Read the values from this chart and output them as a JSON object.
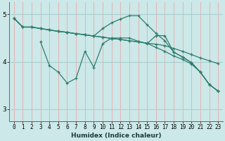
{
  "xlabel": "Humidex (Indice chaleur)",
  "xlim": [
    -0.5,
    23.5
  ],
  "ylim": [
    2.75,
    5.25
  ],
  "yticks": [
    3,
    4,
    5
  ],
  "xticks": [
    0,
    1,
    2,
    3,
    4,
    5,
    6,
    7,
    8,
    9,
    10,
    11,
    12,
    13,
    14,
    15,
    16,
    17,
    18,
    19,
    20,
    21,
    22,
    23
  ],
  "bg_color": "#cce8e8",
  "vgrid_color": "#e8aaaa",
  "hgrid_color": "#aacece",
  "line_color": "#2e7d6e",
  "lines": [
    {
      "x": [
        0,
        1,
        2,
        3,
        4,
        5,
        6,
        7,
        8,
        9,
        10,
        11,
        12,
        13,
        14,
        15,
        16,
        17,
        18,
        19,
        20,
        21,
        22,
        23
      ],
      "y": [
        4.92,
        4.73,
        4.73,
        4.7,
        4.67,
        4.64,
        4.62,
        4.59,
        4.57,
        4.54,
        4.52,
        4.49,
        4.47,
        4.44,
        4.42,
        4.39,
        4.37,
        4.34,
        4.28,
        4.22,
        4.15,
        4.08,
        4.02,
        3.96
      ]
    },
    {
      "x": [
        0,
        1,
        2,
        3,
        4,
        5,
        6,
        7,
        8,
        9,
        10,
        11,
        12,
        13,
        14,
        15,
        16,
        17,
        18,
        19,
        20,
        21,
        22,
        23
      ],
      "y": [
        4.92,
        4.73,
        4.73,
        4.7,
        4.67,
        4.64,
        4.62,
        4.59,
        4.57,
        4.54,
        4.52,
        4.49,
        4.47,
        4.44,
        4.42,
        4.39,
        4.3,
        4.22,
        4.12,
        4.05,
        3.95,
        3.78,
        3.52,
        3.38
      ]
    },
    {
      "x": [
        0,
        1,
        2,
        3,
        4,
        5,
        6,
        7,
        8,
        9,
        10,
        11,
        12,
        13,
        14,
        15,
        16,
        17,
        18,
        19,
        20,
        21,
        22,
        23
      ],
      "y": [
        4.92,
        4.73,
        4.73,
        4.7,
        4.67,
        4.64,
        4.62,
        4.59,
        4.57,
        4.54,
        4.7,
        4.82,
        4.9,
        4.97,
        4.97,
        4.78,
        4.6,
        4.44,
        4.2,
        4.1,
        3.98,
        3.78,
        3.52,
        3.38
      ]
    },
    {
      "x": [
        3,
        4,
        5,
        6,
        7,
        8,
        9,
        10,
        11,
        12,
        13,
        14,
        15,
        16,
        17,
        18,
        19,
        20,
        21,
        22,
        23
      ],
      "y": [
        4.42,
        3.92,
        3.78,
        3.55,
        3.65,
        4.22,
        3.88,
        4.38,
        4.5,
        4.5,
        4.5,
        4.43,
        4.38,
        4.55,
        4.55,
        4.2,
        4.1,
        3.98,
        3.78,
        3.52,
        3.38
      ]
    }
  ]
}
